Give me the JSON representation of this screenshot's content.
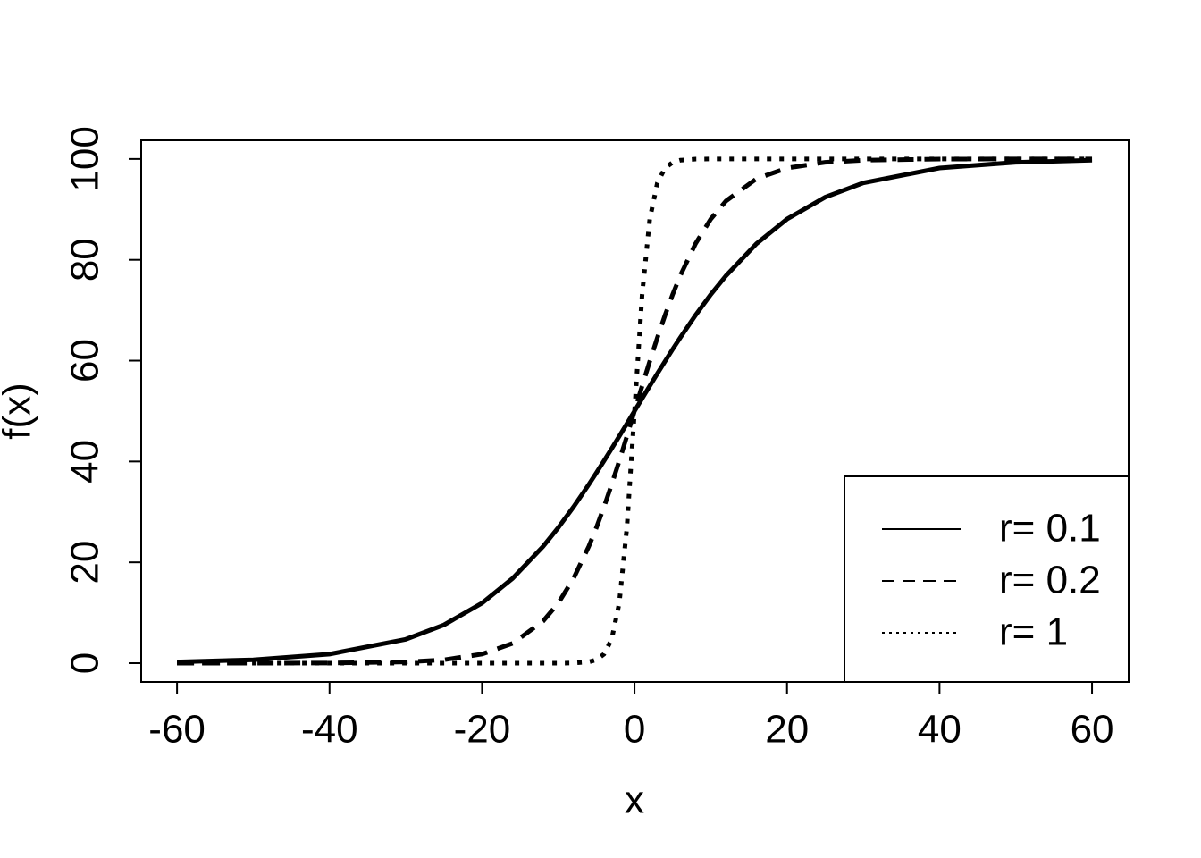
{
  "chart_data": {
    "type": "line",
    "x_label": "x",
    "y_label": "f(x)",
    "x": [
      -60,
      -50,
      -40,
      -30,
      -25,
      -20,
      -16,
      -12,
      -10,
      -8,
      -6,
      -5,
      -4,
      -3,
      -2,
      -1,
      0,
      1,
      2,
      3,
      4,
      5,
      6,
      8,
      10,
      12,
      16,
      20,
      25,
      30,
      40,
      50,
      60
    ],
    "series": [
      {
        "name": "r= 0.1",
        "color": "#000000",
        "dash": "solid",
        "values": [
          0.25,
          0.67,
          1.8,
          4.74,
          7.59,
          11.92,
          16.8,
          23.15,
          26.89,
          31.0,
          35.43,
          37.75,
          40.13,
          42.56,
          45.02,
          47.5,
          50,
          52.5,
          54.98,
          57.44,
          59.87,
          62.25,
          64.57,
          69.0,
          73.11,
          76.85,
          83.2,
          88.08,
          92.41,
          95.26,
          98.2,
          99.33,
          99.75
        ]
      },
      {
        "name": "r= 0.2",
        "color": "#000000",
        "dash": "dashed",
        "values": [
          0,
          0,
          0.03,
          0.25,
          0.67,
          1.8,
          3.92,
          8.32,
          11.92,
          16.8,
          23.15,
          26.89,
          31.0,
          35.43,
          40.13,
          45.02,
          50,
          54.98,
          59.87,
          64.57,
          69.0,
          73.11,
          76.85,
          83.2,
          88.08,
          91.68,
          96.08,
          98.2,
          99.33,
          99.75,
          99.97,
          100,
          100
        ]
      },
      {
        "name": "r= 1",
        "color": "#000000",
        "dash": "dotted",
        "values": [
          0,
          0,
          0,
          0,
          0,
          0,
          0,
          0,
          0,
          0.03,
          0.25,
          0.67,
          1.8,
          4.74,
          11.92,
          26.89,
          50,
          73.11,
          88.08,
          95.26,
          98.2,
          99.33,
          99.75,
          99.97,
          100,
          100,
          100,
          100,
          100,
          100,
          100,
          100,
          100
        ]
      }
    ],
    "xlim": [
      -64.7,
      64.8
    ],
    "ylim": [
      -3.72,
      103.7
    ],
    "xticks": [
      -60,
      -40,
      -20,
      0,
      20,
      40,
      60
    ],
    "yticks": [
      0,
      20,
      40,
      60,
      80,
      100
    ],
    "legend": "bottom-right",
    "grid": false
  }
}
